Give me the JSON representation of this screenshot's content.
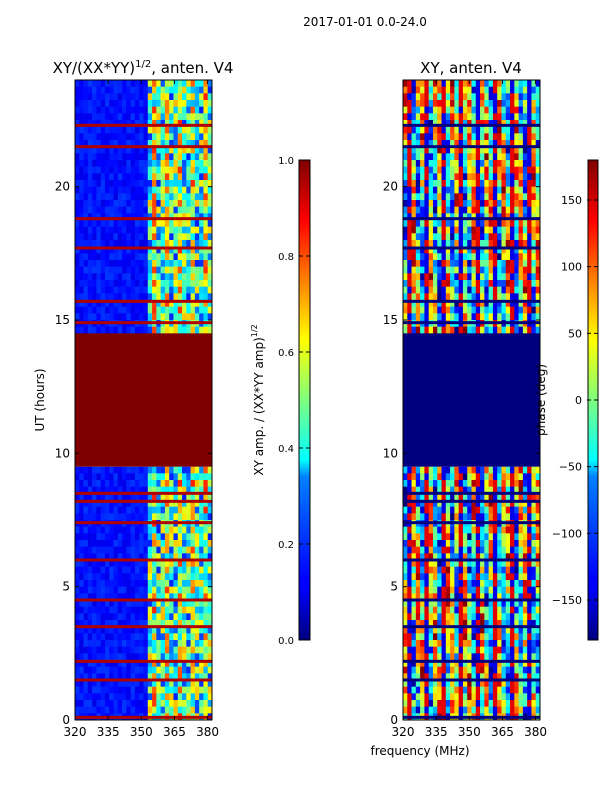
{
  "suptitle": "2017-01-01 0.0-24.0",
  "chart_data": [
    {
      "type": "heatmap",
      "title": "XY/(XX*YY)^{1/2}, anten. V4",
      "title_main": "XY/(XX*YY)",
      "title_exp": "1/2",
      "title_tail": ", anten. V4",
      "ylabel": "UT (hours)",
      "xlabel": "",
      "xlim": [
        320,
        382
      ],
      "ylim": [
        0,
        24
      ],
      "xticks": [
        320,
        335,
        350,
        365,
        380
      ],
      "yticks": [
        0,
        5,
        10,
        15,
        20
      ],
      "colorbar": {
        "label": "XY amp. / (XX*YY amp)^{1/2}",
        "label_main": "XY amp. / (XX*YY amp)",
        "label_exp": "1/2",
        "range": [
          0.0,
          1.0
        ],
        "ticks": [
          "0.0",
          "0.2",
          "0.4",
          "0.6",
          "0.8",
          "1.0"
        ],
        "tick_values": [
          0.0,
          0.2,
          0.4,
          0.6,
          0.8,
          1.0
        ]
      },
      "gap_hours": [
        9.5,
        14.5
      ],
      "notable_rows_hours": [
        0.1,
        1.5,
        2.2,
        3.5,
        4.5,
        6.0,
        7.4,
        8.2,
        8.5,
        14.9,
        15.7,
        17.7,
        18.8,
        21.5,
        22.3
      ],
      "bright_band_mhz": [
        353,
        382
      ]
    },
    {
      "type": "heatmap",
      "title": "XY, anten. V4",
      "ylabel": "",
      "xlabel": "frequency (MHz)",
      "xlim": [
        320,
        382
      ],
      "ylim": [
        0,
        24
      ],
      "xticks": [
        320,
        335,
        350,
        365,
        380
      ],
      "yticks": [
        0,
        5,
        10,
        15,
        20
      ],
      "colorbar": {
        "label": "phase (deg)",
        "range": [
          -180,
          180
        ],
        "ticks": [
          "150",
          "100",
          "50",
          "0",
          "−50",
          "−100",
          "−150"
        ],
        "tick_values": [
          150,
          100,
          50,
          0,
          -50,
          -100,
          -150
        ]
      },
      "gap_hours": [
        9.5,
        14.5
      ],
      "notable_rows_hours": [
        0.1,
        1.5,
        2.2,
        3.5,
        4.5,
        6.0,
        7.4,
        8.2,
        8.5,
        14.9,
        15.7,
        17.7,
        18.8,
        21.5,
        22.3
      ]
    }
  ]
}
